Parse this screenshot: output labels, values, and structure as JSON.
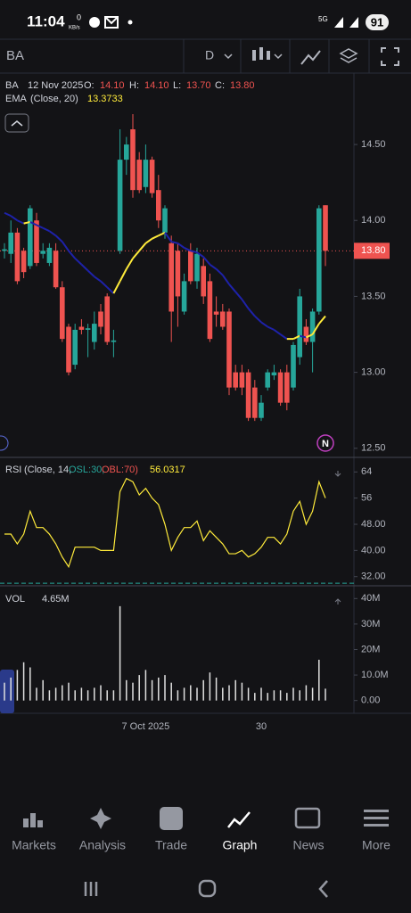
{
  "status": {
    "time": "11:04",
    "speed": "0",
    "speed_unit": "KB/s",
    "network": "5G",
    "battery": "91"
  },
  "toolbar": {
    "symbol": "BA",
    "interval": "D"
  },
  "legend": {
    "symbol": "BA",
    "date": "12 Nov 2025",
    "o_label": "O:",
    "o": "14.10",
    "h_label": "H:",
    "h": "14.10",
    "l_label": "L:",
    "l": "13.70",
    "c_label": "C:",
    "c": "13.80",
    "ema_name": "EMA",
    "ema_params": "(Close, 20)",
    "ema_value": "13.3733"
  },
  "marker": "N",
  "chart_data": {
    "type": "candlestick",
    "up_color": "#26a69a",
    "down_color": "#ef5350",
    "ema_up_color": "#ffeb3b",
    "ema_down_color": "#1e22aa",
    "candles": [
      [
        13.8,
        13.85,
        13.75,
        13.81
      ],
      [
        13.78,
        14.0,
        13.72,
        13.92
      ],
      [
        13.92,
        13.95,
        13.58,
        13.6
      ],
      [
        13.8,
        13.82,
        13.62,
        13.66
      ],
      [
        13.7,
        14.1,
        13.68,
        14.08
      ],
      [
        14.0,
        14.05,
        13.7,
        13.72
      ],
      [
        13.78,
        13.85,
        13.75,
        13.8
      ],
      [
        13.72,
        13.85,
        13.7,
        13.82
      ],
      [
        13.8,
        13.85,
        13.55,
        13.56
      ],
      [
        13.56,
        13.6,
        13.2,
        13.22
      ],
      [
        13.3,
        13.32,
        12.98,
        13.0
      ],
      [
        13.05,
        13.32,
        13.02,
        13.28
      ],
      [
        13.3,
        13.35,
        13.25,
        13.28
      ],
      [
        13.28,
        13.32,
        13.1,
        13.29
      ],
      [
        13.2,
        13.4,
        13.15,
        13.32
      ],
      [
        13.4,
        13.45,
        13.25,
        13.3
      ],
      [
        13.5,
        13.52,
        13.18,
        13.2
      ],
      [
        13.2,
        13.28,
        13.1,
        13.21
      ],
      [
        13.8,
        14.6,
        13.78,
        14.4
      ],
      [
        14.4,
        14.55,
        14.3,
        14.5
      ],
      [
        14.6,
        14.7,
        14.15,
        14.2
      ],
      [
        14.4,
        14.45,
        14.18,
        14.2
      ],
      [
        14.22,
        14.5,
        14.18,
        14.4
      ],
      [
        14.4,
        14.42,
        14.15,
        14.18
      ],
      [
        14.2,
        14.3,
        13.95,
        14.0
      ],
      [
        13.92,
        14.1,
        13.88,
        14.08
      ],
      [
        13.85,
        13.9,
        13.2,
        13.4
      ],
      [
        13.8,
        13.85,
        13.3,
        13.5
      ],
      [
        13.4,
        13.65,
        13.38,
        13.6
      ],
      [
        13.8,
        13.85,
        13.58,
        13.6
      ],
      [
        13.6,
        13.82,
        13.55,
        13.78
      ],
      [
        13.7,
        13.75,
        13.45,
        13.5
      ],
      [
        13.6,
        13.65,
        13.2,
        13.22
      ],
      [
        13.4,
        13.5,
        13.3,
        13.38
      ],
      [
        13.4,
        13.45,
        13.28,
        13.3
      ],
      [
        13.4,
        13.42,
        12.85,
        12.9
      ],
      [
        13.0,
        13.05,
        12.88,
        12.9
      ],
      [
        13.0,
        13.05,
        12.85,
        12.9
      ],
      [
        13.0,
        13.02,
        12.68,
        12.7
      ],
      [
        12.9,
        12.95,
        12.68,
        12.7
      ],
      [
        12.7,
        12.85,
        12.68,
        12.8
      ],
      [
        12.9,
        13.02,
        12.88,
        13.0
      ],
      [
        12.98,
        13.05,
        12.95,
        13.0
      ],
      [
        13.0,
        13.02,
        12.78,
        12.8
      ],
      [
        13.0,
        13.05,
        12.75,
        12.8
      ],
      [
        12.9,
        13.2,
        12.88,
        13.18
      ],
      [
        13.1,
        13.55,
        13.05,
        13.5
      ],
      [
        13.3,
        13.35,
        13.18,
        13.2
      ],
      [
        13.2,
        13.42,
        13.0,
        13.4
      ],
      [
        13.4,
        14.1,
        13.38,
        14.08
      ],
      [
        14.1,
        14.1,
        13.7,
        13.8
      ]
    ],
    "ema": [
      14.05,
      14.03,
      14.0,
      13.98,
      13.99,
      13.97,
      13.95,
      13.93,
      13.9,
      13.86,
      13.8,
      13.75,
      13.71,
      13.67,
      13.63,
      13.6,
      13.56,
      13.52,
      13.6,
      13.68,
      13.75,
      13.8,
      13.85,
      13.88,
      13.9,
      13.92,
      13.86,
      13.85,
      13.82,
      13.8,
      13.79,
      13.76,
      13.71,
      13.68,
      13.64,
      13.58,
      13.53,
      13.48,
      13.42,
      13.37,
      13.33,
      13.3,
      13.28,
      13.25,
      13.22,
      13.22,
      13.24,
      13.23,
      13.25,
      13.32,
      13.37
    ],
    "ylim": [
      12.44,
      14.97
    ],
    "yticks": [
      {
        "value": 14.5,
        "label": "14.50"
      },
      {
        "value": 14,
        "label": "14.00"
      },
      {
        "value": 13.5,
        "label": "13.50"
      },
      {
        "value": 13,
        "label": "13.00"
      },
      {
        "value": 12.5,
        "label": "12.50"
      }
    ],
    "last_price": {
      "value": 13.8,
      "label": "13.80"
    },
    "xlabels": [
      {
        "index": 22,
        "label": "7 Oct 2025"
      },
      {
        "index": 40,
        "label": "30"
      }
    ],
    "rsi": {
      "name": "RSI",
      "params": "(Close, 14,",
      "osl_text": "OSL:30,",
      "obl_text": "OBL:70)",
      "value_text": "56.0317",
      "color": "#ffeb3b",
      "oversold": 30,
      "values": [
        45,
        45,
        42,
        45,
        52,
        47,
        47,
        45,
        42,
        38,
        35,
        41,
        41,
        41,
        41,
        40,
        40,
        40,
        58,
        62,
        61,
        57,
        59,
        56,
        54,
        48,
        40,
        44,
        47,
        47,
        49,
        43,
        46,
        44,
        42,
        39,
        39,
        40,
        38,
        39,
        41,
        44,
        44,
        42,
        45,
        52,
        55,
        48,
        52,
        61,
        56.0317
      ],
      "ylim": [
        29.2,
        67.9
      ],
      "yticks": [
        64,
        56,
        {
          "value": 48,
          "label": "48.00"
        },
        {
          "value": 40,
          "label": "40.00"
        },
        {
          "value": 32,
          "label": "32.00"
        }
      ]
    },
    "volume": {
      "name": "VOL",
      "value_text": "4.65M",
      "color": "#e0e0e0",
      "values": [
        7,
        9,
        12,
        15,
        13,
        5,
        8,
        4,
        5,
        6,
        7,
        4,
        5,
        4,
        5,
        6,
        4,
        4,
        37,
        8,
        7,
        10,
        12,
        8,
        9,
        10,
        7,
        4,
        5,
        6,
        5,
        8,
        11,
        9,
        5,
        6,
        8,
        7,
        5,
        3,
        5,
        3,
        4,
        4,
        3,
        5,
        4,
        6,
        5,
        16,
        4.65
      ],
      "ylim": [
        -5,
        44.3
      ],
      "yticks": [
        {
          "value": 40,
          "label": "40M"
        },
        {
          "value": 30,
          "label": "30M"
        },
        {
          "value": 20,
          "label": "20M"
        },
        {
          "value": 10,
          "label": "10.0M"
        },
        {
          "value": 0,
          "label": "0.00"
        }
      ]
    }
  },
  "nav": [
    "Markets",
    "Analysis",
    "Trade",
    "Graph",
    "News",
    "More"
  ]
}
